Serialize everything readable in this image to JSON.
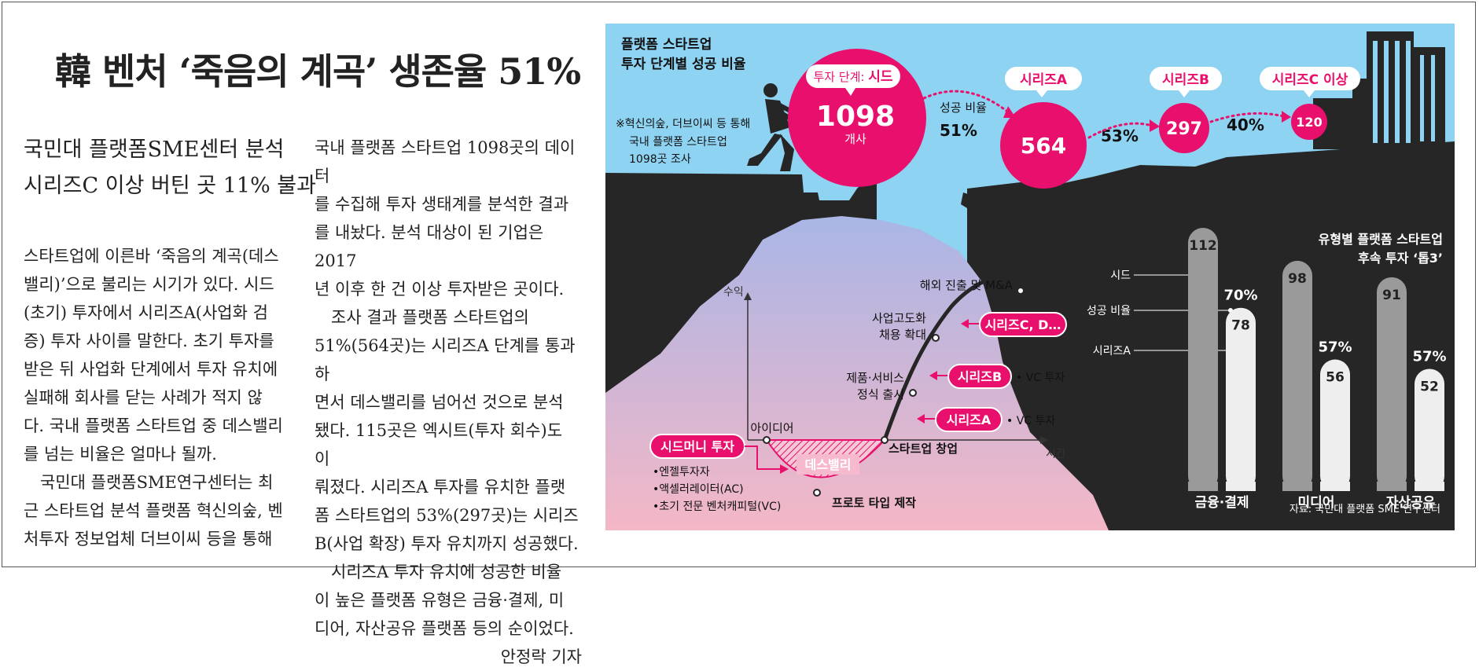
{
  "headline": "韓 벤처 ‘죽음의 계곡’ 생존율 51%",
  "subheadline": [
    "국민대 플랫폼SME센터 분석",
    "시리즈C 이상 버틴 곳 11% 불과"
  ],
  "column1": [
    "스타트업에 이른바 ‘죽음의 계곡(데스",
    "밸리)’으로 불리는 시기가 있다. 시드",
    "(초기) 투자에서 시리즈A(사업화 검",
    "증) 투자 사이를 말한다. 초기 투자를",
    "받은 뒤 사업화 단계에서 투자 유치에",
    "실패해 회사를 닫는 사례가 적지 않",
    "다. 국내 플랫폼 스타트업 중 데스밸리",
    "를 넘는 비율은 얼마나 될까.",
    "　국민대 플랫폼SME연구센터는 최",
    "근 스타트업 분석 플랫폼 혁신의숲, 벤",
    "처투자 정보업체 더브이씨 등을 통해"
  ],
  "column2": [
    "국내 플랫폼 스타트업 1098곳의 데이터",
    "를 수집해 투자 생태계를 분석한 결과",
    "를 내놨다. 분석 대상이 된 기업은 2017",
    "년 이후 한 건 이상 투자받은 곳이다.",
    "　조사 결과 플랫폼 스타트업의",
    "51%(564곳)는 시리즈A 단계를 통과하",
    "면서 데스밸리를 넘어선 것으로 분석",
    "됐다. 115곳은 엑시트(투자 회수)도 이",
    "뤄졌다. 시리즈A 투자를 유치한 플랫",
    "폼 스타트업의 53%(297곳)는 시리즈",
    "B(사업 확장) 투자 유치까지 성공했다.",
    "　시리즈A 투자 유치에 성공한 비율",
    "이 높은 플랫폼 유형은 금융·결제, 미",
    "디어, 자산공유 플랫폼 등의 순이었다."
  ],
  "byline": "안정락 기자",
  "infographic": {
    "title": [
      "플랫폼 스타트업",
      "투자 단계별 성공 비율"
    ],
    "note": [
      "※혁신의숲, 더브이씨 등 통해",
      "국내 플랫폼 스타트업",
      "1098곳 조사"
    ],
    "seed_tag_prefix": "투자 단계: ",
    "seed_tag_name": "시드",
    "seed_value": "1098",
    "seed_unit": "개사",
    "success_label": "성공 비율",
    "stages": [
      {
        "name": "시리즈A",
        "value": "564",
        "rate": "51%"
      },
      {
        "name": "시리즈B",
        "value": "297",
        "rate": "53%"
      },
      {
        "name": "시리즈C 이상",
        "value": "120",
        "rate": "40%"
      }
    ],
    "curve": {
      "y_axis": "수익",
      "x_axis": "시간",
      "death_valley": "데스밸리",
      "idea": "아이디어",
      "prototype": "프로토 타입 제작",
      "founding": "스타트업 창업",
      "launch": [
        "제품·서비스",
        "정식 출시"
      ],
      "advance": [
        "사업고도화",
        "채용 확대"
      ],
      "expansion": "해외 진출 및 M&A",
      "seed_money": "시드머니 투자",
      "seed_investors": [
        "•엔젤투자자",
        "•액셀러레이터(AC)",
        "•초기 전문 벤처캐피털(VC)"
      ],
      "series_a": "시리즈A",
      "series_b": "시리즈B",
      "series_c": "시리즈C, D…",
      "vc": "• VC 투자"
    },
    "top3": {
      "title": [
        "유형별 플랫폼 스타트업",
        "후속 투자 ‘톱3’"
      ],
      "legend": {
        "seed": "시드",
        "rate": "성공 비율",
        "series_a": "시리즈A"
      },
      "source": "자료: 국민대 플랫폼 SME 연구센터"
    },
    "colors": {
      "sky": "#8fd3f2",
      "cliff": "#262626",
      "magenta": "#e8106c",
      "valley_top": "#a9b6e6",
      "valley_bottom": "#f4b7c6"
    }
  },
  "chart_data": {
    "type": "bar",
    "title": "유형별 플랫폼 스타트업 후속 투자 ‘톱3’",
    "categories": [
      "금융·결제",
      "미디어",
      "자산공유"
    ],
    "series": [
      {
        "name": "시드",
        "values": [
          112,
          98,
          91
        ]
      },
      {
        "name": "시리즈A",
        "values": [
          78,
          56,
          52
        ]
      }
    ],
    "rates": [
      "70%",
      "57%",
      "57%"
    ],
    "rate_label": "성공 비율",
    "ylim": [
      0,
      112
    ],
    "grid": false,
    "legend": "left"
  }
}
